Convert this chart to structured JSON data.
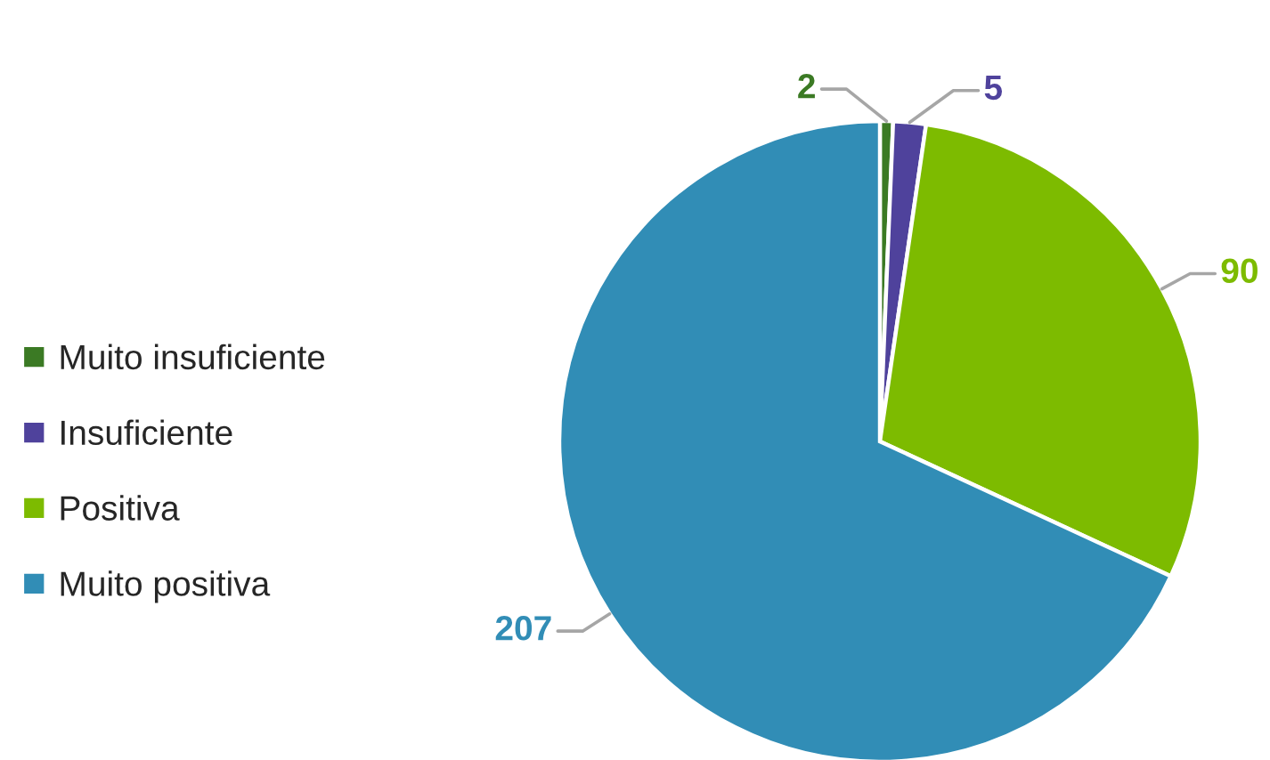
{
  "chart_data": {
    "type": "pie",
    "categories": [
      "Muito insuficiente",
      "Insuficiente",
      "Positiva",
      "Muito positiva"
    ],
    "values": [
      2,
      5,
      90,
      207
    ],
    "colors": [
      "#3b7a24",
      "#4f429c",
      "#7dbb00",
      "#318db6"
    ],
    "data_labels": true,
    "legend": "left"
  }
}
